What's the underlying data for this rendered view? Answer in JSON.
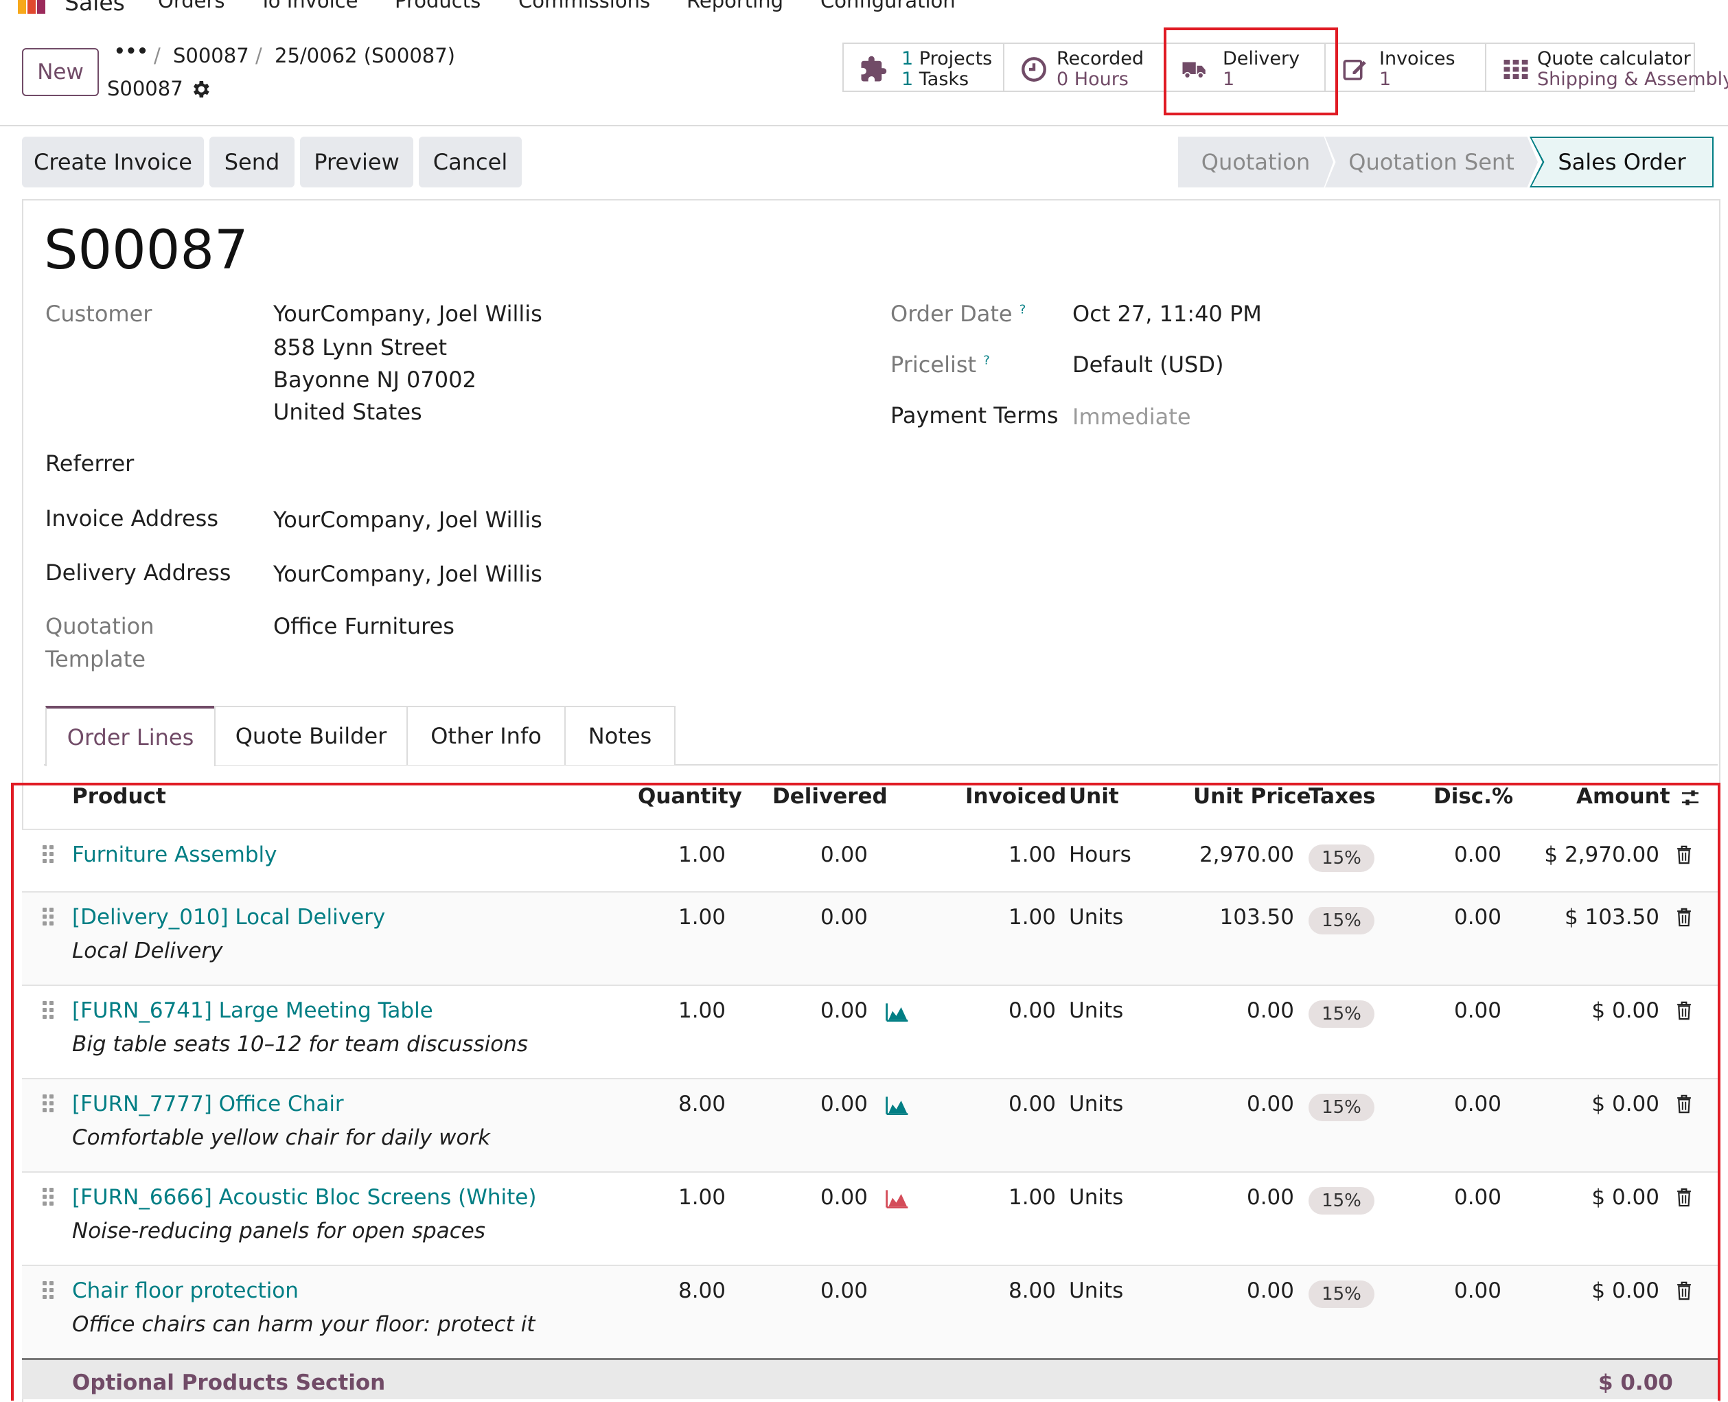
{
  "nav": {
    "app_name": "Sales",
    "menu": [
      "Orders",
      "To Invoice",
      "Products",
      "Commissions",
      "Reporting",
      "Configuration"
    ]
  },
  "control": {
    "new_label": "New",
    "more": "•••",
    "breadcrumb": [
      "S00087",
      "25/0062 (S00087)"
    ],
    "breadcrumb_sep": "/",
    "record_name": "S00087"
  },
  "stats": {
    "projects": {
      "count": "1",
      "label": "Projects"
    },
    "tasks": {
      "count": "1",
      "label": "Tasks"
    },
    "recorded": {
      "label": "Recorded",
      "value": "0 Hours"
    },
    "delivery": {
      "label": "Delivery",
      "value": "1"
    },
    "invoices": {
      "label": "Invoices",
      "value": "1"
    },
    "quote_calc": {
      "label": "Quote calculator",
      "value": "Shipping & Assembly"
    }
  },
  "actions": [
    "Create Invoice",
    "Send",
    "Preview",
    "Cancel"
  ],
  "stages": [
    "Quotation",
    "Quotation Sent",
    "Sales Order"
  ],
  "active_stage": "Sales Order",
  "form": {
    "title": "S00087",
    "customer_label": "Customer",
    "customer_name": "YourCompany, Joel Willis",
    "customer_addr": [
      "858 Lynn Street",
      "Bayonne NJ 07002",
      "United States"
    ],
    "referrer_label": "Referrer",
    "invoice_addr_label": "Invoice Address",
    "invoice_addr": "YourCompany, Joel Willis",
    "delivery_addr_label": "Delivery Address",
    "delivery_addr": "YourCompany, Joel Willis",
    "quot_template_label_1": "Quotation",
    "quot_template_label_2": "Template",
    "quot_template": "Office Furnitures",
    "order_date_label": "Order Date",
    "order_date": "Oct 27, 11:40 PM",
    "pricelist_label": "Pricelist",
    "pricelist": "Default (USD)",
    "payment_terms_label": "Payment Terms",
    "payment_terms": "Immediate",
    "help_mark": "?"
  },
  "tabs": [
    "Order Lines",
    "Quote Builder",
    "Other Info",
    "Notes"
  ],
  "table": {
    "headers": {
      "product": "Product",
      "quantity": "Quantity",
      "delivered": "Delivered",
      "invoiced": "Invoiced",
      "unit": "Unit",
      "unit_price": "Unit Price",
      "taxes": "Taxes",
      "disc": "Disc.%",
      "amount": "Amount"
    },
    "rows": [
      {
        "product": "Furniture Assembly",
        "desc": "",
        "qty": "1.00",
        "delivered": "0.00",
        "forecast": "",
        "invoiced": "1.00",
        "unit": "Hours",
        "price": "2,970.00",
        "tax": "15%",
        "disc": "0.00",
        "amount": "$ 2,970.00"
      },
      {
        "product": "[Delivery_010] Local Delivery",
        "desc": "Local Delivery",
        "qty": "1.00",
        "delivered": "0.00",
        "forecast": "",
        "invoiced": "1.00",
        "unit": "Units",
        "price": "103.50",
        "tax": "15%",
        "disc": "0.00",
        "amount": "$ 103.50"
      },
      {
        "product": "[FURN_6741] Large Meeting Table",
        "desc": "Big table seats 10–12 for team discussions",
        "qty": "1.00",
        "delivered": "0.00",
        "forecast": "available",
        "invoiced": "0.00",
        "unit": "Units",
        "price": "0.00",
        "tax": "15%",
        "disc": "0.00",
        "amount": "$ 0.00"
      },
      {
        "product": "[FURN_7777] Office Chair",
        "desc": "Comfortable yellow chair for daily work",
        "qty": "8.00",
        "delivered": "0.00",
        "forecast": "available",
        "invoiced": "0.00",
        "unit": "Units",
        "price": "0.00",
        "tax": "15%",
        "disc": "0.00",
        "amount": "$ 0.00"
      },
      {
        "product": "[FURN_6666] Acoustic Bloc Screens (White)",
        "desc": "Noise-reducing panels for open spaces",
        "qty": "1.00",
        "delivered": "0.00",
        "forecast": "unavailable",
        "invoiced": "1.00",
        "unit": "Units",
        "price": "0.00",
        "tax": "15%",
        "disc": "0.00",
        "amount": "$ 0.00"
      },
      {
        "product": "Chair floor protection",
        "desc": "Office chairs can harm your floor: protect it",
        "qty": "8.00",
        "delivered": "0.00",
        "forecast": "",
        "invoiced": "8.00",
        "unit": "Units",
        "price": "0.00",
        "tax": "15%",
        "disc": "0.00",
        "amount": "$ 0.00"
      }
    ],
    "section": {
      "name": "Optional Products Section",
      "amount": "$ 0.00"
    }
  },
  "colors": {
    "brand": "#714b67",
    "link": "#017e84",
    "highlight": "#e01b24",
    "forecast_ok": "#017e84",
    "forecast_bad": "#d44c59"
  }
}
